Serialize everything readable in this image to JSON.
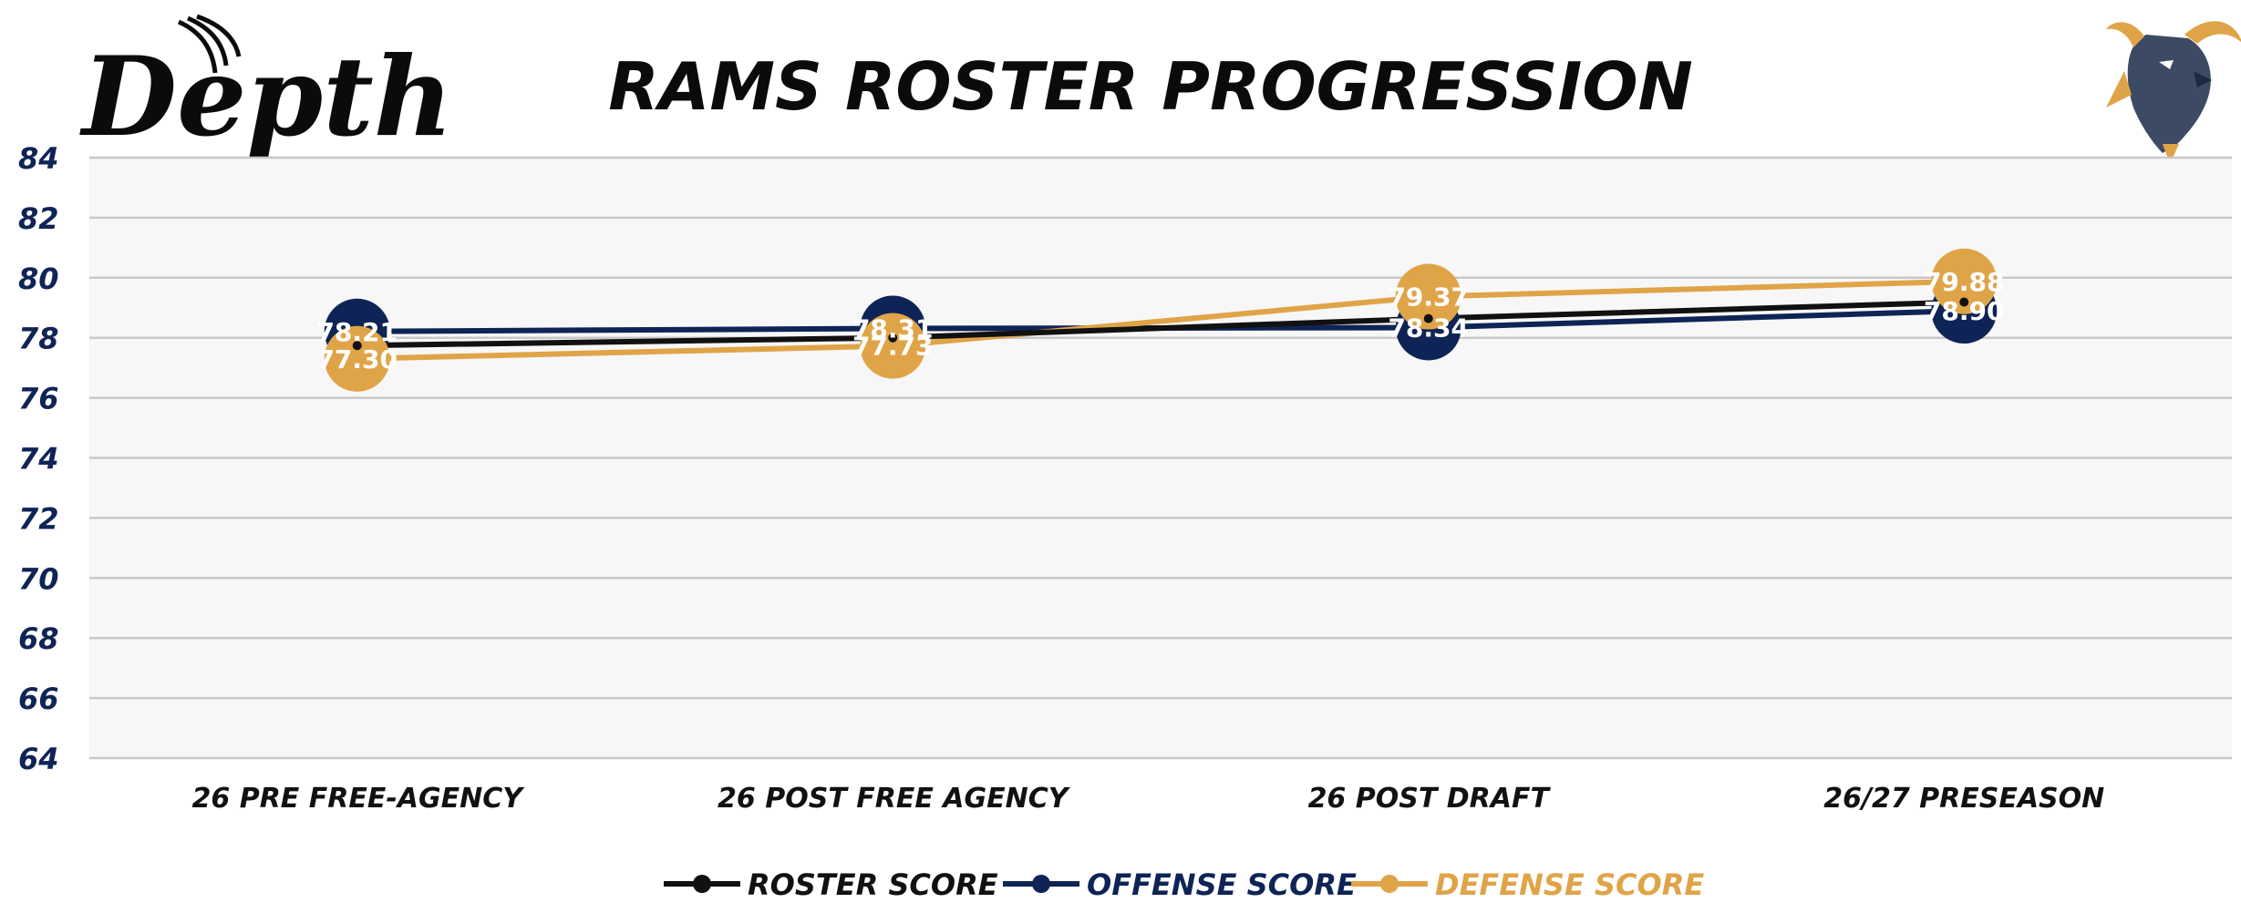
{
  "brand": {
    "logo_text": "Depth"
  },
  "colors": {
    "roster": "#111111",
    "offense": "#0f2456",
    "defense": "#e0a448",
    "axis_text": "#0f2456",
    "grid": "#c8c8cc",
    "plot_bg": "#f7f7f7"
  },
  "chart_data": {
    "type": "line",
    "title": "RAMS ROSTER PROGRESSION",
    "categories": [
      "26 PRE FREE-AGENCY",
      "26 POST FREE AGENCY",
      "26 POST DRAFT",
      "26/27 PRESEASON"
    ],
    "ylim": [
      64,
      84
    ],
    "yticks": [
      64,
      66,
      68,
      70,
      72,
      74,
      76,
      78,
      80,
      82,
      84
    ],
    "grid": true,
    "legend_position": "bottom-center",
    "series": [
      {
        "name": "ROSTER SCORE",
        "color": "#111111",
        "values": [
          77.74,
          78.0,
          78.64,
          79.19
        ],
        "labels": [
          "77.74",
          "78.00",
          "78.64",
          "79.19"
        ],
        "show_labels": false
      },
      {
        "name": "OFFENSE SCORE",
        "color": "#0f2456",
        "values": [
          78.21,
          78.31,
          78.34,
          78.9
        ],
        "labels": [
          "78.21",
          "78.31",
          "78.34",
          "78.90"
        ],
        "show_labels": true
      },
      {
        "name": "DEFENSE SCORE",
        "color": "#e0a448",
        "values": [
          77.3,
          77.73,
          79.37,
          79.88
        ],
        "labels": [
          "77.30",
          "77.73",
          "79.37",
          "79.88"
        ],
        "show_labels": true
      }
    ]
  }
}
